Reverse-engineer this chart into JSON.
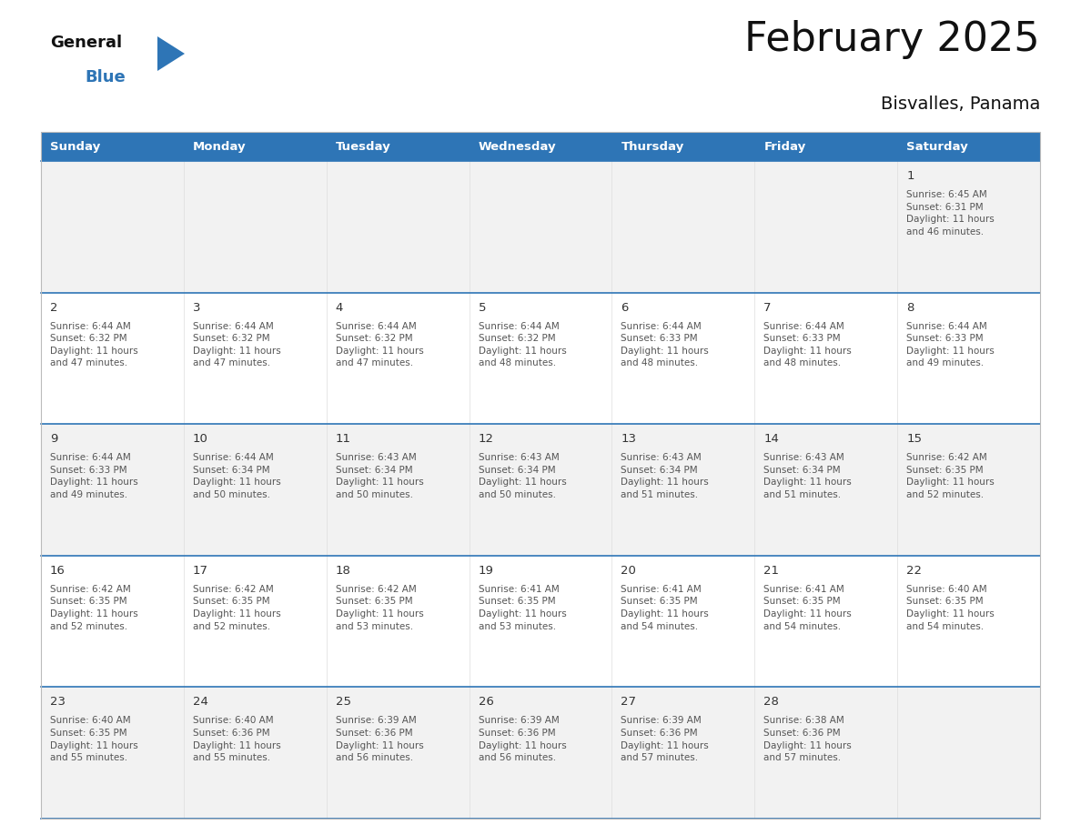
{
  "title": "February 2025",
  "subtitle": "Bisvalles, Panama",
  "header_bg": "#2E75B6",
  "header_text_color": "#FFFFFF",
  "day_names": [
    "Sunday",
    "Monday",
    "Tuesday",
    "Wednesday",
    "Thursday",
    "Friday",
    "Saturday"
  ],
  "cell_bg_week1": "#F2F2F2",
  "cell_bg_week2": "#FFFFFF",
  "cell_bg_week3": "#F2F2F2",
  "cell_bg_week4": "#FFFFFF",
  "cell_bg_week5": "#F2F2F2",
  "cell_border_color": "#2E75B6",
  "day_num_color": "#333333",
  "cell_text_color": "#555555",
  "logo_text_color": "#111111",
  "logo_blue_color": "#2E75B6",
  "weeks": [
    [
      {
        "day": null,
        "info": null
      },
      {
        "day": null,
        "info": null
      },
      {
        "day": null,
        "info": null
      },
      {
        "day": null,
        "info": null
      },
      {
        "day": null,
        "info": null
      },
      {
        "day": null,
        "info": null
      },
      {
        "day": 1,
        "info": "Sunrise: 6:45 AM\nSunset: 6:31 PM\nDaylight: 11 hours\nand 46 minutes."
      }
    ],
    [
      {
        "day": 2,
        "info": "Sunrise: 6:44 AM\nSunset: 6:32 PM\nDaylight: 11 hours\nand 47 minutes."
      },
      {
        "day": 3,
        "info": "Sunrise: 6:44 AM\nSunset: 6:32 PM\nDaylight: 11 hours\nand 47 minutes."
      },
      {
        "day": 4,
        "info": "Sunrise: 6:44 AM\nSunset: 6:32 PM\nDaylight: 11 hours\nand 47 minutes."
      },
      {
        "day": 5,
        "info": "Sunrise: 6:44 AM\nSunset: 6:32 PM\nDaylight: 11 hours\nand 48 minutes."
      },
      {
        "day": 6,
        "info": "Sunrise: 6:44 AM\nSunset: 6:33 PM\nDaylight: 11 hours\nand 48 minutes."
      },
      {
        "day": 7,
        "info": "Sunrise: 6:44 AM\nSunset: 6:33 PM\nDaylight: 11 hours\nand 48 minutes."
      },
      {
        "day": 8,
        "info": "Sunrise: 6:44 AM\nSunset: 6:33 PM\nDaylight: 11 hours\nand 49 minutes."
      }
    ],
    [
      {
        "day": 9,
        "info": "Sunrise: 6:44 AM\nSunset: 6:33 PM\nDaylight: 11 hours\nand 49 minutes."
      },
      {
        "day": 10,
        "info": "Sunrise: 6:44 AM\nSunset: 6:34 PM\nDaylight: 11 hours\nand 50 minutes."
      },
      {
        "day": 11,
        "info": "Sunrise: 6:43 AM\nSunset: 6:34 PM\nDaylight: 11 hours\nand 50 minutes."
      },
      {
        "day": 12,
        "info": "Sunrise: 6:43 AM\nSunset: 6:34 PM\nDaylight: 11 hours\nand 50 minutes."
      },
      {
        "day": 13,
        "info": "Sunrise: 6:43 AM\nSunset: 6:34 PM\nDaylight: 11 hours\nand 51 minutes."
      },
      {
        "day": 14,
        "info": "Sunrise: 6:43 AM\nSunset: 6:34 PM\nDaylight: 11 hours\nand 51 minutes."
      },
      {
        "day": 15,
        "info": "Sunrise: 6:42 AM\nSunset: 6:35 PM\nDaylight: 11 hours\nand 52 minutes."
      }
    ],
    [
      {
        "day": 16,
        "info": "Sunrise: 6:42 AM\nSunset: 6:35 PM\nDaylight: 11 hours\nand 52 minutes."
      },
      {
        "day": 17,
        "info": "Sunrise: 6:42 AM\nSunset: 6:35 PM\nDaylight: 11 hours\nand 52 minutes."
      },
      {
        "day": 18,
        "info": "Sunrise: 6:42 AM\nSunset: 6:35 PM\nDaylight: 11 hours\nand 53 minutes."
      },
      {
        "day": 19,
        "info": "Sunrise: 6:41 AM\nSunset: 6:35 PM\nDaylight: 11 hours\nand 53 minutes."
      },
      {
        "day": 20,
        "info": "Sunrise: 6:41 AM\nSunset: 6:35 PM\nDaylight: 11 hours\nand 54 minutes."
      },
      {
        "day": 21,
        "info": "Sunrise: 6:41 AM\nSunset: 6:35 PM\nDaylight: 11 hours\nand 54 minutes."
      },
      {
        "day": 22,
        "info": "Sunrise: 6:40 AM\nSunset: 6:35 PM\nDaylight: 11 hours\nand 54 minutes."
      }
    ],
    [
      {
        "day": 23,
        "info": "Sunrise: 6:40 AM\nSunset: 6:35 PM\nDaylight: 11 hours\nand 55 minutes."
      },
      {
        "day": 24,
        "info": "Sunrise: 6:40 AM\nSunset: 6:36 PM\nDaylight: 11 hours\nand 55 minutes."
      },
      {
        "day": 25,
        "info": "Sunrise: 6:39 AM\nSunset: 6:36 PM\nDaylight: 11 hours\nand 56 minutes."
      },
      {
        "day": 26,
        "info": "Sunrise: 6:39 AM\nSunset: 6:36 PM\nDaylight: 11 hours\nand 56 minutes."
      },
      {
        "day": 27,
        "info": "Sunrise: 6:39 AM\nSunset: 6:36 PM\nDaylight: 11 hours\nand 57 minutes."
      },
      {
        "day": 28,
        "info": "Sunrise: 6:38 AM\nSunset: 6:36 PM\nDaylight: 11 hours\nand 57 minutes."
      },
      {
        "day": null,
        "info": null
      }
    ]
  ],
  "cell_bgs": [
    "#F2F2F2",
    "#FFFFFF",
    "#F2F2F2",
    "#FFFFFF",
    "#F2F2F2"
  ]
}
